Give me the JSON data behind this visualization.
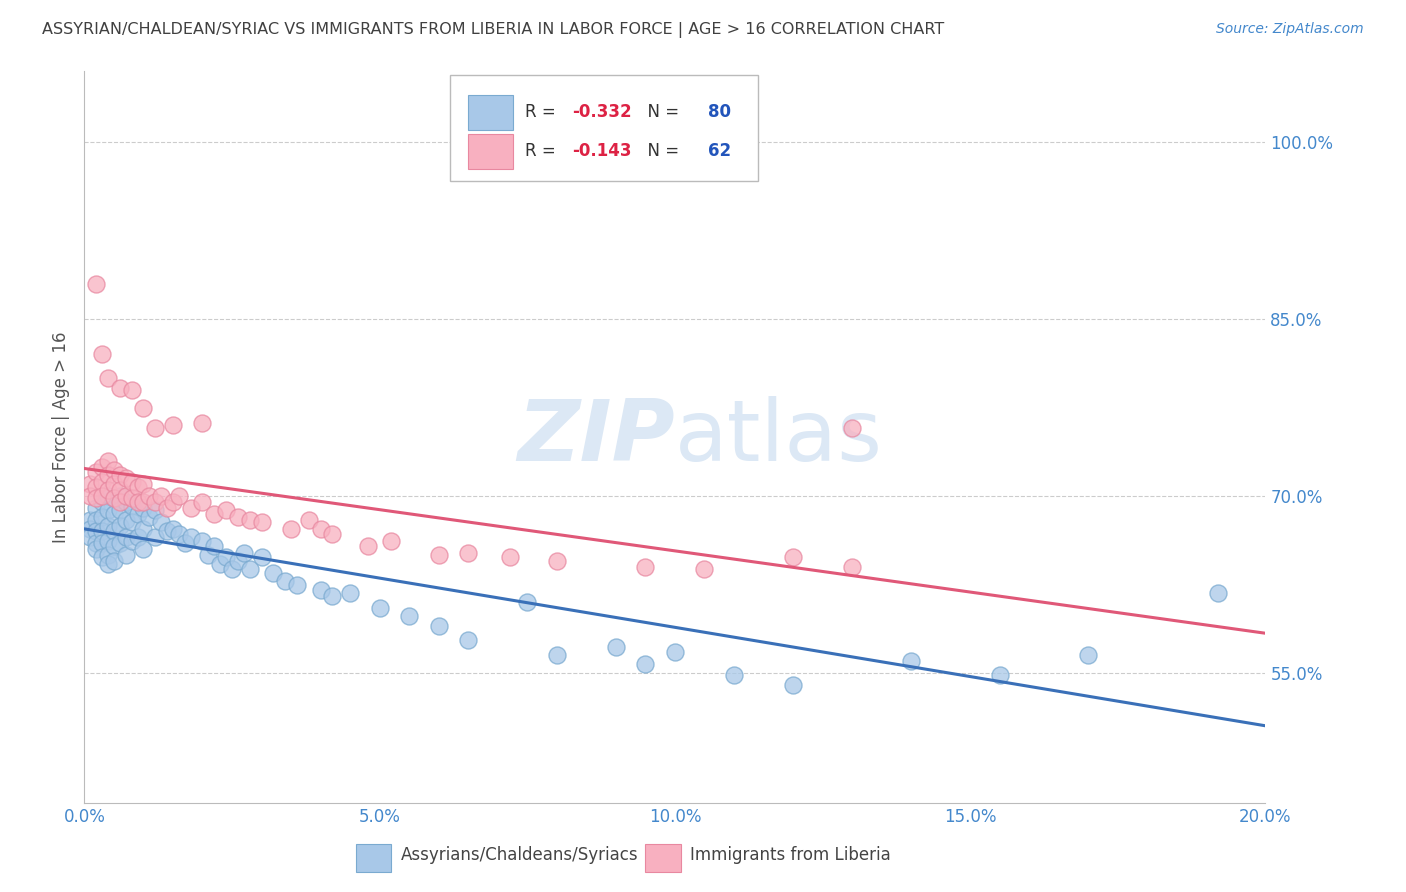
{
  "title": "ASSYRIAN/CHALDEAN/SYRIAC VS IMMIGRANTS FROM LIBERIA IN LABOR FORCE | AGE > 16 CORRELATION CHART",
  "source": "Source: ZipAtlas.com",
  "ylabel": "In Labor Force | Age > 16",
  "xlim": [
    0.0,
    0.2
  ],
  "ylim": [
    0.44,
    1.06
  ],
  "yticks": [
    0.55,
    0.7,
    0.85,
    1.0
  ],
  "ytick_labels": [
    "55.0%",
    "70.0%",
    "85.0%",
    "100.0%"
  ],
  "xticks": [
    0.0,
    0.05,
    0.1,
    0.15,
    0.2
  ],
  "xtick_labels": [
    "0.0%",
    "5.0%",
    "10.0%",
    "15.0%",
    "20.0%"
  ],
  "series1_label": "Assyrians/Chaldeans/Syriacs",
  "series1_R": "-0.332",
  "series1_N": "80",
  "series1_color": "#a8c8e8",
  "series1_edge_color": "#7aaad0",
  "series1_line_color": "#3a70b8",
  "series2_label": "Immigrants from Liberia",
  "series2_R": "-0.143",
  "series2_N": "62",
  "series2_color": "#f8b0c0",
  "series2_edge_color": "#e888a0",
  "series2_line_color": "#e05878",
  "background_color": "#ffffff",
  "grid_color": "#cccccc",
  "title_color": "#404040",
  "axis_color": "#4488cc",
  "watermark": "ZIPatlas",
  "watermark_color": "#dce8f5",
  "series1_x": [
    0.001,
    0.001,
    0.001,
    0.002,
    0.002,
    0.002,
    0.002,
    0.002,
    0.003,
    0.003,
    0.003,
    0.003,
    0.003,
    0.004,
    0.004,
    0.004,
    0.004,
    0.004,
    0.004,
    0.005,
    0.005,
    0.005,
    0.005,
    0.005,
    0.006,
    0.006,
    0.006,
    0.006,
    0.007,
    0.007,
    0.007,
    0.007,
    0.008,
    0.008,
    0.008,
    0.009,
    0.009,
    0.01,
    0.01,
    0.01,
    0.011,
    0.012,
    0.012,
    0.013,
    0.014,
    0.015,
    0.016,
    0.017,
    0.018,
    0.02,
    0.021,
    0.022,
    0.023,
    0.024,
    0.025,
    0.026,
    0.027,
    0.028,
    0.03,
    0.032,
    0.034,
    0.036,
    0.04,
    0.042,
    0.045,
    0.05,
    0.055,
    0.06,
    0.065,
    0.075,
    0.08,
    0.09,
    0.095,
    0.1,
    0.11,
    0.12,
    0.14,
    0.155,
    0.17,
    0.192
  ],
  "series1_y": [
    0.68,
    0.672,
    0.665,
    0.69,
    0.68,
    0.67,
    0.66,
    0.655,
    0.695,
    0.682,
    0.67,
    0.66,
    0.648,
    0.7,
    0.688,
    0.675,
    0.662,
    0.65,
    0.642,
    0.698,
    0.685,
    0.67,
    0.658,
    0.645,
    0.7,
    0.688,
    0.675,
    0.66,
    0.695,
    0.68,
    0.665,
    0.65,
    0.692,
    0.678,
    0.662,
    0.685,
    0.665,
    0.69,
    0.672,
    0.655,
    0.682,
    0.688,
    0.665,
    0.678,
    0.67,
    0.672,
    0.668,
    0.66,
    0.665,
    0.662,
    0.65,
    0.658,
    0.642,
    0.648,
    0.638,
    0.645,
    0.652,
    0.638,
    0.648,
    0.635,
    0.628,
    0.625,
    0.62,
    0.615,
    0.618,
    0.605,
    0.598,
    0.59,
    0.578,
    0.61,
    0.565,
    0.572,
    0.558,
    0.568,
    0.548,
    0.54,
    0.56,
    0.548,
    0.565,
    0.618
  ],
  "series2_x": [
    0.001,
    0.001,
    0.002,
    0.002,
    0.002,
    0.003,
    0.003,
    0.003,
    0.004,
    0.004,
    0.004,
    0.005,
    0.005,
    0.005,
    0.006,
    0.006,
    0.006,
    0.007,
    0.007,
    0.008,
    0.008,
    0.009,
    0.009,
    0.01,
    0.01,
    0.011,
    0.012,
    0.013,
    0.014,
    0.015,
    0.016,
    0.018,
    0.02,
    0.022,
    0.024,
    0.026,
    0.028,
    0.03,
    0.035,
    0.038,
    0.04,
    0.042,
    0.048,
    0.052,
    0.06,
    0.065,
    0.072,
    0.08,
    0.095,
    0.105,
    0.12,
    0.13,
    0.002,
    0.003,
    0.004,
    0.006,
    0.008,
    0.01,
    0.015,
    0.02,
    0.012,
    0.13
  ],
  "series2_y": [
    0.71,
    0.7,
    0.72,
    0.708,
    0.698,
    0.725,
    0.712,
    0.7,
    0.73,
    0.718,
    0.705,
    0.722,
    0.71,
    0.698,
    0.718,
    0.705,
    0.695,
    0.715,
    0.7,
    0.712,
    0.698,
    0.708,
    0.695,
    0.71,
    0.695,
    0.7,
    0.695,
    0.7,
    0.69,
    0.695,
    0.7,
    0.69,
    0.695,
    0.685,
    0.688,
    0.682,
    0.68,
    0.678,
    0.672,
    0.68,
    0.672,
    0.668,
    0.658,
    0.662,
    0.65,
    0.652,
    0.648,
    0.645,
    0.64,
    0.638,
    0.648,
    0.64,
    0.88,
    0.82,
    0.8,
    0.792,
    0.79,
    0.775,
    0.76,
    0.762,
    0.758,
    0.758
  ]
}
